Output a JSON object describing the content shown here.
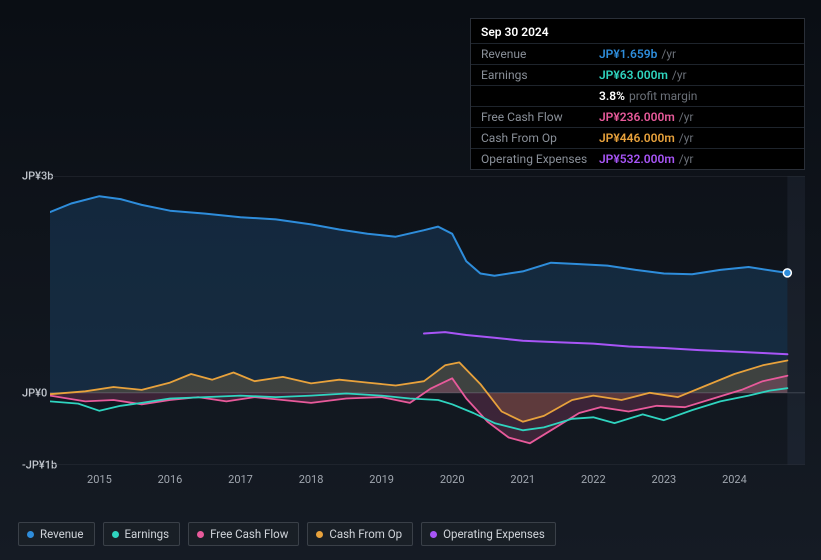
{
  "tooltip": {
    "date": "Sep 30 2024",
    "rows": [
      {
        "label": "Revenue",
        "value": "JP¥1.659b",
        "unit": "/yr",
        "color": "#2e8ddb"
      },
      {
        "label": "Earnings",
        "value": "JP¥63.000m",
        "unit": "/yr",
        "color": "#2fd4bf"
      },
      {
        "label_blank": true,
        "value": "3.8%",
        "unit": "profit margin",
        "color": "#ffffff"
      },
      {
        "label": "Free Cash Flow",
        "value": "JP¥236.000m",
        "unit": "/yr",
        "color": "#e85a9b"
      },
      {
        "label": "Cash From Op",
        "value": "JP¥446.000m",
        "unit": "/yr",
        "color": "#e8a23c"
      },
      {
        "label": "Operating Expenses",
        "value": "JP¥532.000m",
        "unit": "/yr",
        "color": "#a855f7"
      }
    ]
  },
  "chart": {
    "ylim": [
      -1000,
      3000
    ],
    "yticks": [
      {
        "v": 3000,
        "label": "JP¥3b"
      },
      {
        "v": 0,
        "label": "JP¥0"
      },
      {
        "v": -1000,
        "label": "-JP¥1b"
      }
    ],
    "xlim": [
      2014.3,
      2025.0
    ],
    "xticks": [
      2015,
      2016,
      2017,
      2018,
      2019,
      2020,
      2021,
      2022,
      2023,
      2024
    ],
    "future_start": 2024.75,
    "background_color": "#0d1117",
    "grid_color": "#2a2f38",
    "series": {
      "revenue": {
        "color": "#2e8ddb",
        "fill_opacity": 0.18,
        "width": 2,
        "points": [
          [
            2014.3,
            2500
          ],
          [
            2014.6,
            2620
          ],
          [
            2015.0,
            2720
          ],
          [
            2015.3,
            2680
          ],
          [
            2015.6,
            2600
          ],
          [
            2016.0,
            2520
          ],
          [
            2016.5,
            2480
          ],
          [
            2017.0,
            2430
          ],
          [
            2017.5,
            2400
          ],
          [
            2018.0,
            2330
          ],
          [
            2018.4,
            2260
          ],
          [
            2018.8,
            2200
          ],
          [
            2019.2,
            2160
          ],
          [
            2019.6,
            2250
          ],
          [
            2019.8,
            2300
          ],
          [
            2020.0,
            2200
          ],
          [
            2020.2,
            1820
          ],
          [
            2020.4,
            1650
          ],
          [
            2020.6,
            1620
          ],
          [
            2021.0,
            1680
          ],
          [
            2021.4,
            1800
          ],
          [
            2021.8,
            1780
          ],
          [
            2022.2,
            1760
          ],
          [
            2022.6,
            1700
          ],
          [
            2023.0,
            1650
          ],
          [
            2023.4,
            1640
          ],
          [
            2023.8,
            1700
          ],
          [
            2024.2,
            1740
          ],
          [
            2024.6,
            1680
          ],
          [
            2024.75,
            1659
          ]
        ]
      },
      "earnings": {
        "color": "#2fd4bf",
        "fill_opacity": 0.0,
        "width": 1.8,
        "points": [
          [
            2014.3,
            -120
          ],
          [
            2014.7,
            -150
          ],
          [
            2015.0,
            -250
          ],
          [
            2015.3,
            -180
          ],
          [
            2015.6,
            -140
          ],
          [
            2016.0,
            -80
          ],
          [
            2016.5,
            -60
          ],
          [
            2017.0,
            -40
          ],
          [
            2017.5,
            -60
          ],
          [
            2018.0,
            -40
          ],
          [
            2018.5,
            -10
          ],
          [
            2019.0,
            -40
          ],
          [
            2019.4,
            -80
          ],
          [
            2019.8,
            -100
          ],
          [
            2020.0,
            -160
          ],
          [
            2020.3,
            -280
          ],
          [
            2020.6,
            -420
          ],
          [
            2021.0,
            -520
          ],
          [
            2021.3,
            -480
          ],
          [
            2021.7,
            -360
          ],
          [
            2022.0,
            -340
          ],
          [
            2022.3,
            -420
          ],
          [
            2022.7,
            -300
          ],
          [
            2023.0,
            -380
          ],
          [
            2023.4,
            -240
          ],
          [
            2023.8,
            -120
          ],
          [
            2024.2,
            -40
          ],
          [
            2024.5,
            30
          ],
          [
            2024.75,
            63
          ]
        ]
      },
      "fcf": {
        "color": "#e85a9b",
        "fill_opacity": 0.2,
        "width": 1.8,
        "points": [
          [
            2014.3,
            -40
          ],
          [
            2014.8,
            -120
          ],
          [
            2015.2,
            -100
          ],
          [
            2015.6,
            -160
          ],
          [
            2016.0,
            -100
          ],
          [
            2016.4,
            -60
          ],
          [
            2016.8,
            -120
          ],
          [
            2017.2,
            -60
          ],
          [
            2017.6,
            -100
          ],
          [
            2018.0,
            -140
          ],
          [
            2018.5,
            -80
          ],
          [
            2019.0,
            -60
          ],
          [
            2019.4,
            -140
          ],
          [
            2019.7,
            60
          ],
          [
            2020.0,
            200
          ],
          [
            2020.2,
            -80
          ],
          [
            2020.5,
            -400
          ],
          [
            2020.8,
            -620
          ],
          [
            2021.1,
            -700
          ],
          [
            2021.4,
            -520
          ],
          [
            2021.8,
            -280
          ],
          [
            2022.1,
            -200
          ],
          [
            2022.5,
            -260
          ],
          [
            2022.9,
            -180
          ],
          [
            2023.3,
            -200
          ],
          [
            2023.7,
            -80
          ],
          [
            2024.1,
            40
          ],
          [
            2024.4,
            160
          ],
          [
            2024.75,
            236
          ]
        ]
      },
      "cashop": {
        "color": "#e8a23c",
        "fill_opacity": 0.2,
        "width": 1.8,
        "points": [
          [
            2014.3,
            -20
          ],
          [
            2014.8,
            20
          ],
          [
            2015.2,
            80
          ],
          [
            2015.6,
            40
          ],
          [
            2016.0,
            140
          ],
          [
            2016.3,
            260
          ],
          [
            2016.6,
            180
          ],
          [
            2016.9,
            280
          ],
          [
            2017.2,
            160
          ],
          [
            2017.6,
            220
          ],
          [
            2018.0,
            130
          ],
          [
            2018.4,
            180
          ],
          [
            2018.8,
            140
          ],
          [
            2019.2,
            100
          ],
          [
            2019.6,
            160
          ],
          [
            2019.9,
            380
          ],
          [
            2020.1,
            420
          ],
          [
            2020.4,
            120
          ],
          [
            2020.7,
            -260
          ],
          [
            2021.0,
            -400
          ],
          [
            2021.3,
            -320
          ],
          [
            2021.7,
            -100
          ],
          [
            2022.0,
            -40
          ],
          [
            2022.4,
            -100
          ],
          [
            2022.8,
            0
          ],
          [
            2023.2,
            -60
          ],
          [
            2023.6,
            100
          ],
          [
            2024.0,
            260
          ],
          [
            2024.4,
            380
          ],
          [
            2024.75,
            446
          ]
        ]
      },
      "opex": {
        "color": "#a855f7",
        "fill_opacity": 0.0,
        "width": 2,
        "points": [
          [
            2019.6,
            820
          ],
          [
            2019.9,
            840
          ],
          [
            2020.2,
            800
          ],
          [
            2020.6,
            760
          ],
          [
            2021.0,
            720
          ],
          [
            2021.5,
            700
          ],
          [
            2022.0,
            680
          ],
          [
            2022.5,
            640
          ],
          [
            2023.0,
            620
          ],
          [
            2023.5,
            590
          ],
          [
            2024.0,
            570
          ],
          [
            2024.4,
            550
          ],
          [
            2024.75,
            532
          ]
        ]
      }
    }
  },
  "legend": [
    {
      "label": "Revenue",
      "color": "#2e8ddb"
    },
    {
      "label": "Earnings",
      "color": "#2fd4bf"
    },
    {
      "label": "Free Cash Flow",
      "color": "#e85a9b"
    },
    {
      "label": "Cash From Op",
      "color": "#e8a23c"
    },
    {
      "label": "Operating Expenses",
      "color": "#a855f7"
    }
  ]
}
